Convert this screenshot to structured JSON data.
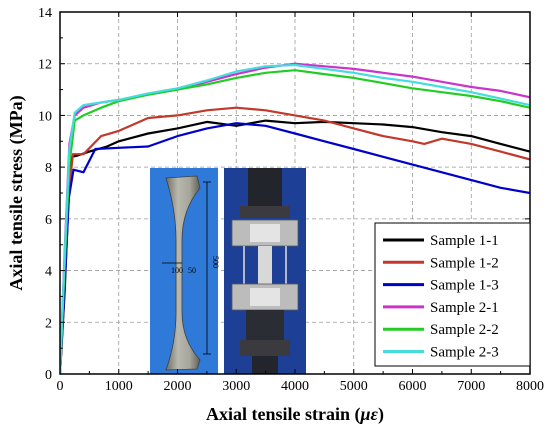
{
  "chart_data": {
    "type": "line",
    "xlabel_main": "Axial tensile strain (",
    "xlabel_unit": "με",
    "xlabel_end": ")",
    "ylabel": "Axial tensile stress (MPa)",
    "xlim": [
      0,
      8000
    ],
    "ylim": [
      0,
      14
    ],
    "xticks": [
      "0",
      "1000",
      "2000",
      "3000",
      "4000",
      "5000",
      "6000",
      "7000",
      "8000"
    ],
    "yticks": [
      "0",
      "2",
      "4",
      "6",
      "8",
      "10",
      "12",
      "14"
    ],
    "grid": true,
    "legend_position": "bottom-right",
    "inset": {
      "dimension_width": "100",
      "dimension_thickness": "50",
      "dimension_length": "500"
    },
    "series": [
      {
        "name": "Sample 1-1",
        "color": "#000000",
        "points": [
          [
            0,
            0
          ],
          [
            80,
            3.2
          ],
          [
            140,
            6.5
          ],
          [
            200,
            8.4
          ],
          [
            300,
            8.45
          ],
          [
            500,
            8.6
          ],
          [
            800,
            8.8
          ],
          [
            1000,
            9.0
          ],
          [
            1500,
            9.3
          ],
          [
            2000,
            9.5
          ],
          [
            2500,
            9.75
          ],
          [
            3000,
            9.6
          ],
          [
            3500,
            9.8
          ],
          [
            4000,
            9.7
          ],
          [
            4500,
            9.75
          ],
          [
            5000,
            9.7
          ],
          [
            5500,
            9.65
          ],
          [
            6000,
            9.55
          ],
          [
            6500,
            9.35
          ],
          [
            7000,
            9.2
          ],
          [
            7500,
            8.9
          ],
          [
            8000,
            8.6
          ]
        ]
      },
      {
        "name": "Sample 1-2",
        "color": "#c0392b",
        "points": [
          [
            0,
            0
          ],
          [
            80,
            3.5
          ],
          [
            150,
            7.0
          ],
          [
            220,
            8.5
          ],
          [
            400,
            8.5
          ],
          [
            700,
            9.2
          ],
          [
            1000,
            9.4
          ],
          [
            1500,
            9.9
          ],
          [
            2000,
            10.0
          ],
          [
            2500,
            10.2
          ],
          [
            3000,
            10.3
          ],
          [
            3500,
            10.2
          ],
          [
            4000,
            10.0
          ],
          [
            4500,
            9.8
          ],
          [
            5000,
            9.5
          ],
          [
            5500,
            9.2
          ],
          [
            6000,
            9.0
          ],
          [
            6200,
            8.9
          ],
          [
            6500,
            9.1
          ],
          [
            7000,
            8.9
          ],
          [
            7500,
            8.6
          ],
          [
            8000,
            8.3
          ]
        ]
      },
      {
        "name": "Sample 1-3",
        "color": "#0000cc",
        "points": [
          [
            0,
            0
          ],
          [
            80,
            3.5
          ],
          [
            150,
            6.8
          ],
          [
            230,
            7.9
          ],
          [
            400,
            7.8
          ],
          [
            600,
            8.7
          ],
          [
            1000,
            8.75
          ],
          [
            1500,
            8.8
          ],
          [
            2000,
            9.2
          ],
          [
            2500,
            9.5
          ],
          [
            3000,
            9.7
          ],
          [
            3500,
            9.6
          ],
          [
            4000,
            9.3
          ],
          [
            4500,
            9.0
          ],
          [
            5000,
            8.7
          ],
          [
            5500,
            8.4
          ],
          [
            6000,
            8.1
          ],
          [
            6500,
            7.8
          ],
          [
            7000,
            7.5
          ],
          [
            7500,
            7.2
          ],
          [
            8000,
            7.0
          ]
        ]
      },
      {
        "name": "Sample 2-1",
        "color": "#cc33cc",
        "points": [
          [
            0,
            0
          ],
          [
            80,
            4.8
          ],
          [
            160,
            8.9
          ],
          [
            250,
            10.0
          ],
          [
            400,
            10.3
          ],
          [
            700,
            10.5
          ],
          [
            1000,
            10.6
          ],
          [
            1500,
            10.8
          ],
          [
            2000,
            11.0
          ],
          [
            2500,
            11.3
          ],
          [
            3000,
            11.6
          ],
          [
            3500,
            11.85
          ],
          [
            4000,
            12.0
          ],
          [
            4500,
            11.9
          ],
          [
            5000,
            11.8
          ],
          [
            5500,
            11.65
          ],
          [
            6000,
            11.5
          ],
          [
            6500,
            11.3
          ],
          [
            7000,
            11.1
          ],
          [
            7500,
            10.95
          ],
          [
            8000,
            10.7
          ]
        ]
      },
      {
        "name": "Sample 2-2",
        "color": "#22cc22",
        "points": [
          [
            0,
            0
          ],
          [
            80,
            4.2
          ],
          [
            160,
            8.1
          ],
          [
            250,
            9.8
          ],
          [
            400,
            10.0
          ],
          [
            700,
            10.3
          ],
          [
            1000,
            10.55
          ],
          [
            1500,
            10.8
          ],
          [
            2000,
            11.0
          ],
          [
            2500,
            11.2
          ],
          [
            3000,
            11.45
          ],
          [
            3500,
            11.65
          ],
          [
            4000,
            11.75
          ],
          [
            4500,
            11.6
          ],
          [
            5000,
            11.45
          ],
          [
            5500,
            11.25
          ],
          [
            6000,
            11.05
          ],
          [
            6500,
            10.9
          ],
          [
            7000,
            10.75
          ],
          [
            7500,
            10.55
          ],
          [
            8000,
            10.3
          ]
        ]
      },
      {
        "name": "Sample 2-3",
        "color": "#44dddd",
        "points": [
          [
            0,
            0
          ],
          [
            80,
            4.6
          ],
          [
            160,
            8.7
          ],
          [
            250,
            10.1
          ],
          [
            400,
            10.4
          ],
          [
            700,
            10.5
          ],
          [
            1000,
            10.6
          ],
          [
            1500,
            10.85
          ],
          [
            2000,
            11.05
          ],
          [
            2500,
            11.35
          ],
          [
            3000,
            11.7
          ],
          [
            3500,
            11.9
          ],
          [
            4000,
            11.95
          ],
          [
            4500,
            11.8
          ],
          [
            5000,
            11.65
          ],
          [
            5500,
            11.45
          ],
          [
            6000,
            11.3
          ],
          [
            6500,
            11.1
          ],
          [
            7000,
            10.9
          ],
          [
            7500,
            10.65
          ],
          [
            8000,
            10.4
          ]
        ]
      }
    ]
  }
}
